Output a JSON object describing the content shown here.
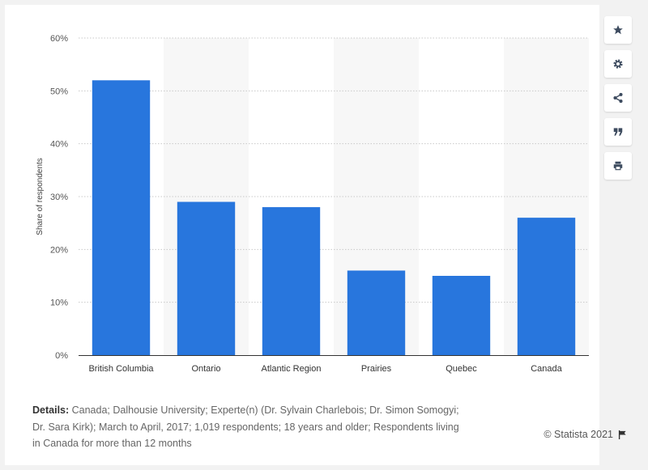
{
  "chart_data": {
    "type": "bar",
    "categories": [
      "British Columbia",
      "Ontario",
      "Atlantic Region",
      "Prairies",
      "Quebec",
      "Canada"
    ],
    "values": [
      52,
      29,
      28,
      16,
      15,
      26
    ],
    "ylabel": "Share of respondents",
    "xlabel": "",
    "ylim": [
      0,
      60
    ],
    "yticks": [
      0,
      10,
      20,
      30,
      40,
      50,
      60
    ],
    "ytick_labels": [
      "0%",
      "10%",
      "20%",
      "30%",
      "40%",
      "50%",
      "60%"
    ],
    "value_suffix": "%",
    "grid": true,
    "legend": "none",
    "bar_color": "#2876dd",
    "band_color": "#f7f7f7"
  },
  "footer": {
    "details_label": "Details:",
    "details_text": " Canada; Dalhousie University; Experte(n) (Dr. Sylvain Charlebois; Dr. Simon Somogyi; Dr. Sara Kirk); March to April, 2017; 1,019 respondents; 18 years and older; Respondents living in Canada for more than 12 months",
    "credit": "© Statista 2021"
  },
  "toolbar": {
    "icons": [
      "star-icon",
      "gear-icon",
      "share-icon",
      "quote-icon",
      "print-icon"
    ]
  }
}
